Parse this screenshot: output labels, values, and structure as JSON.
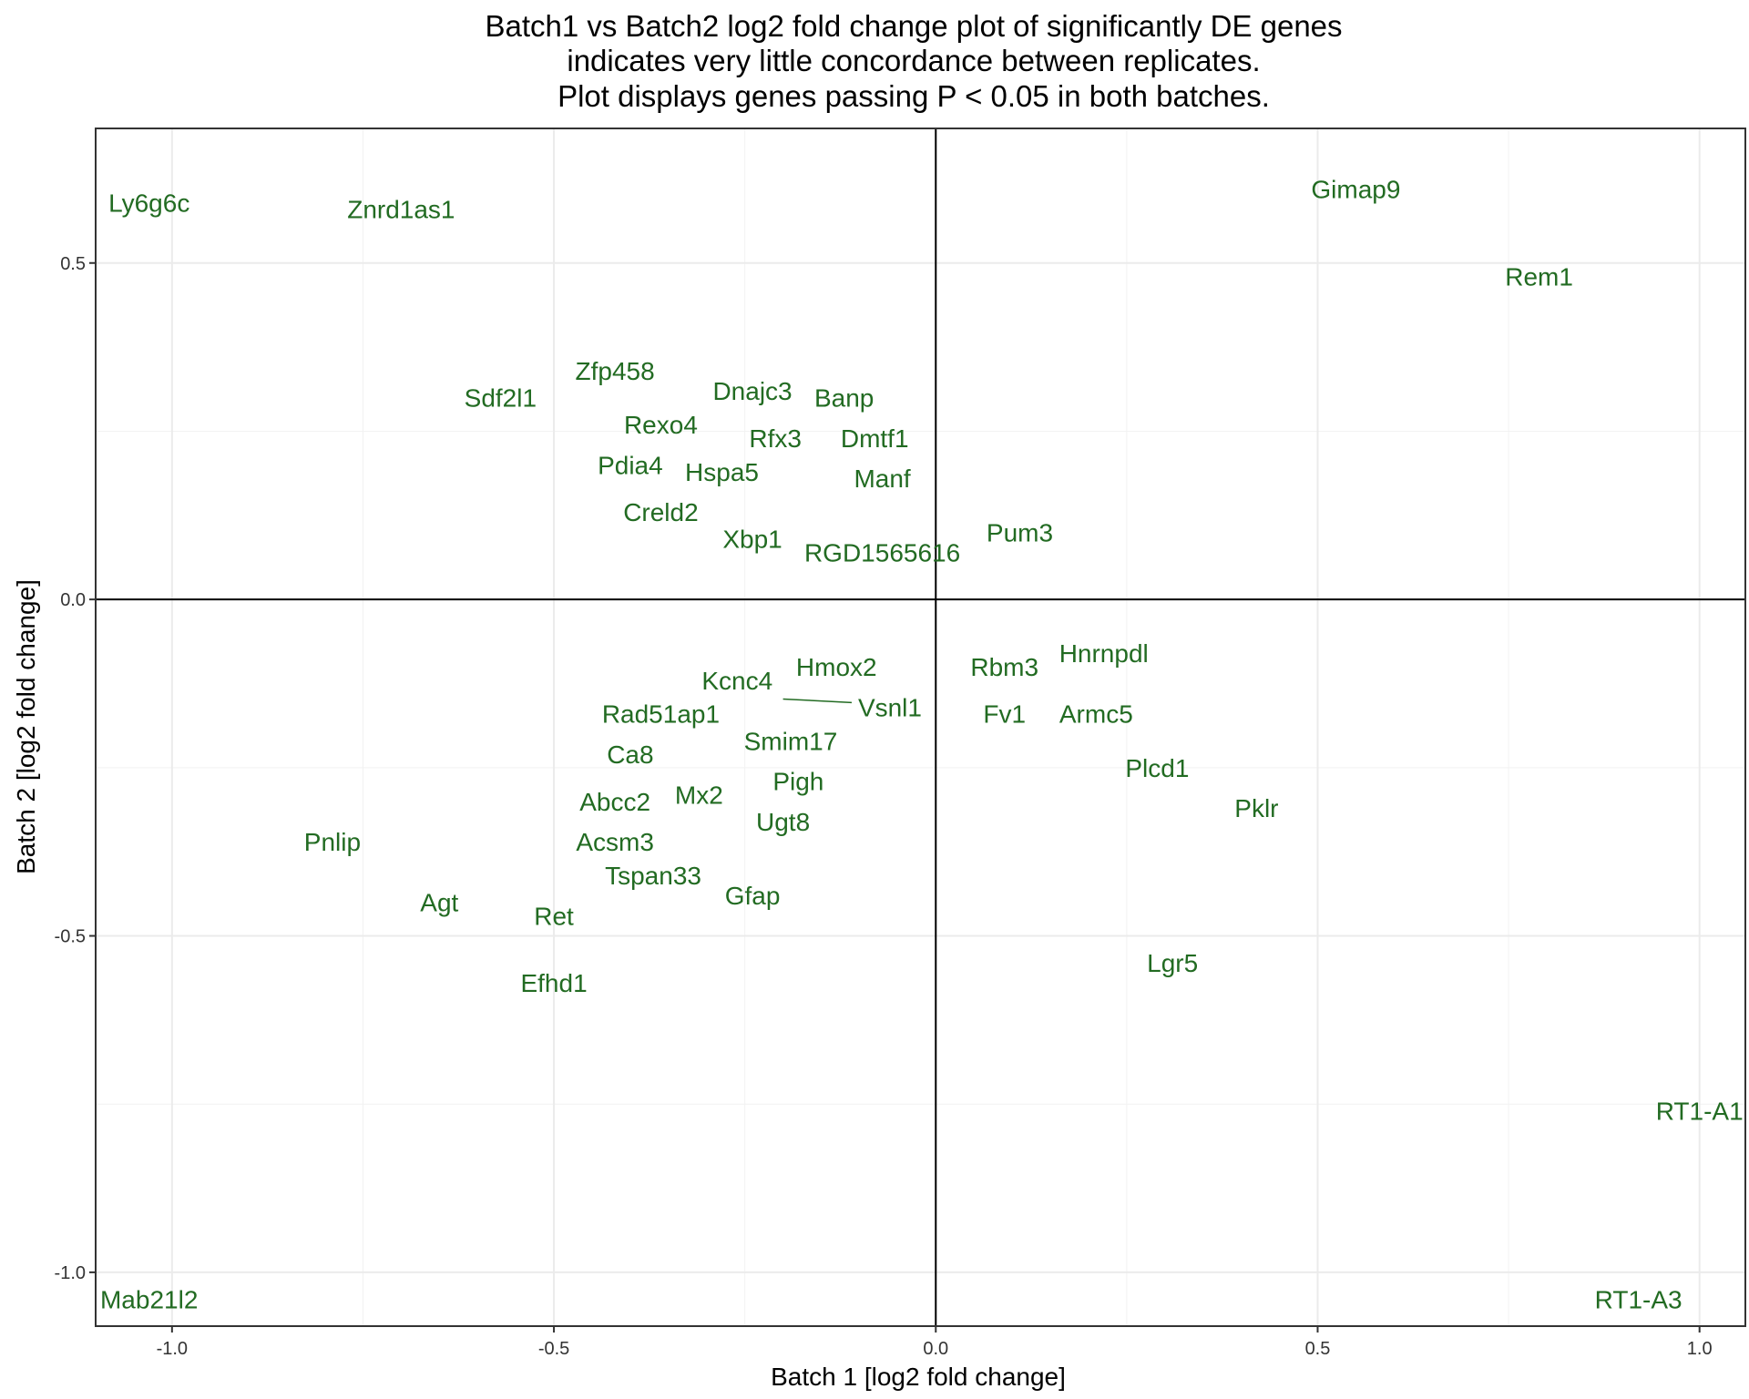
{
  "chart_data": {
    "type": "scatter",
    "title_lines": [
      "Batch1 vs Batch2 log2 fold change plot of significantly DE genes",
      "indicates very little concordance between replicates.",
      "Plot displays genes passing P < 0.05 in both batches."
    ],
    "xlabel": "Batch 1 [log2 fold change]",
    "ylabel": "Batch 2 [log2 fold change]",
    "xlim": [
      -1.1,
      1.06
    ],
    "ylim": [
      -1.08,
      0.7
    ],
    "x_ticks": [
      -1.0,
      -0.5,
      0.0,
      0.5,
      1.0
    ],
    "x_tick_labels": [
      "-1.0",
      "-0.5",
      "0.0",
      "0.5",
      "1.0"
    ],
    "y_ticks": [
      -1.0,
      -0.5,
      0.0,
      0.5
    ],
    "y_tick_labels": [
      "-1.0",
      "-0.5",
      "0.0",
      "0.5"
    ],
    "grid": true,
    "reference_lines": {
      "x": 0,
      "y": 0
    },
    "label_color": "#226B22",
    "points": [
      {
        "label": "Ly6g6c",
        "x": -1.03,
        "y": 0.59
      },
      {
        "label": "Znrd1as1",
        "x": -0.7,
        "y": 0.58
      },
      {
        "label": "Gimap9",
        "x": 0.55,
        "y": 0.61
      },
      {
        "label": "Rem1",
        "x": 0.79,
        "y": 0.48
      },
      {
        "label": "Zfp458",
        "x": -0.42,
        "y": 0.34
      },
      {
        "label": "Sdf2l1",
        "x": -0.57,
        "y": 0.3
      },
      {
        "label": "Dnajc3",
        "x": -0.24,
        "y": 0.31
      },
      {
        "label": "Banp",
        "x": -0.12,
        "y": 0.3
      },
      {
        "label": "Rexo4",
        "x": -0.36,
        "y": 0.26
      },
      {
        "label": "Rfx3",
        "x": -0.21,
        "y": 0.24
      },
      {
        "label": "Dmtf1",
        "x": -0.08,
        "y": 0.24
      },
      {
        "label": "Pdia4",
        "x": -0.4,
        "y": 0.2
      },
      {
        "label": "Hspa5",
        "x": -0.28,
        "y": 0.19
      },
      {
        "label": "Manf",
        "x": -0.07,
        "y": 0.18
      },
      {
        "label": "Creld2",
        "x": -0.36,
        "y": 0.13
      },
      {
        "label": "Pum3",
        "x": 0.11,
        "y": 0.1
      },
      {
        "label": "Xbp1",
        "x": -0.24,
        "y": 0.09
      },
      {
        "label": "RGD1565616",
        "x": -0.07,
        "y": 0.07
      },
      {
        "label": "Hnrnpdl",
        "x": 0.22,
        "y": -0.08
      },
      {
        "label": "Hmox2",
        "x": -0.13,
        "y": -0.1
      },
      {
        "label": "Rbm3",
        "x": 0.09,
        "y": -0.1
      },
      {
        "label": "Kcnc4",
        "x": -0.26,
        "y": -0.12
      },
      {
        "label": "Vsnl1",
        "x": -0.06,
        "y": -0.16
      },
      {
        "label": "Fv1",
        "x": 0.09,
        "y": -0.17
      },
      {
        "label": "Armc5",
        "x": 0.21,
        "y": -0.17
      },
      {
        "label": "Rad51ap1",
        "x": -0.36,
        "y": -0.17
      },
      {
        "label": "Smim17",
        "x": -0.19,
        "y": -0.21
      },
      {
        "label": "Ca8",
        "x": -0.4,
        "y": -0.23
      },
      {
        "label": "Plcd1",
        "x": 0.29,
        "y": -0.25
      },
      {
        "label": "Pigh",
        "x": -0.18,
        "y": -0.27
      },
      {
        "label": "Mx2",
        "x": -0.31,
        "y": -0.29
      },
      {
        "label": "Abcc2",
        "x": -0.42,
        "y": -0.3
      },
      {
        "label": "Pklr",
        "x": 0.42,
        "y": -0.31
      },
      {
        "label": "Ugt8",
        "x": -0.2,
        "y": -0.33
      },
      {
        "label": "Pnlip",
        "x": -0.79,
        "y": -0.36
      },
      {
        "label": "Acsm3",
        "x": -0.42,
        "y": -0.36
      },
      {
        "label": "Tspan33",
        "x": -0.37,
        "y": -0.41
      },
      {
        "label": "Gfap",
        "x": -0.24,
        "y": -0.44
      },
      {
        "label": "Agt",
        "x": -0.65,
        "y": -0.45
      },
      {
        "label": "Ret",
        "x": -0.5,
        "y": -0.47
      },
      {
        "label": "Lgr5",
        "x": 0.31,
        "y": -0.54
      },
      {
        "label": "Efhd1",
        "x": -0.5,
        "y": -0.57
      },
      {
        "label": "RT1-A1",
        "x": 1.0,
        "y": -0.76
      },
      {
        "label": "Mab21l2",
        "x": -1.03,
        "y": -1.04
      },
      {
        "label": "RT1-A3",
        "x": 0.92,
        "y": -1.04
      }
    ],
    "connector": {
      "from_label": "Vsnl1",
      "to": {
        "x": -0.2,
        "y": -0.148
      }
    }
  }
}
